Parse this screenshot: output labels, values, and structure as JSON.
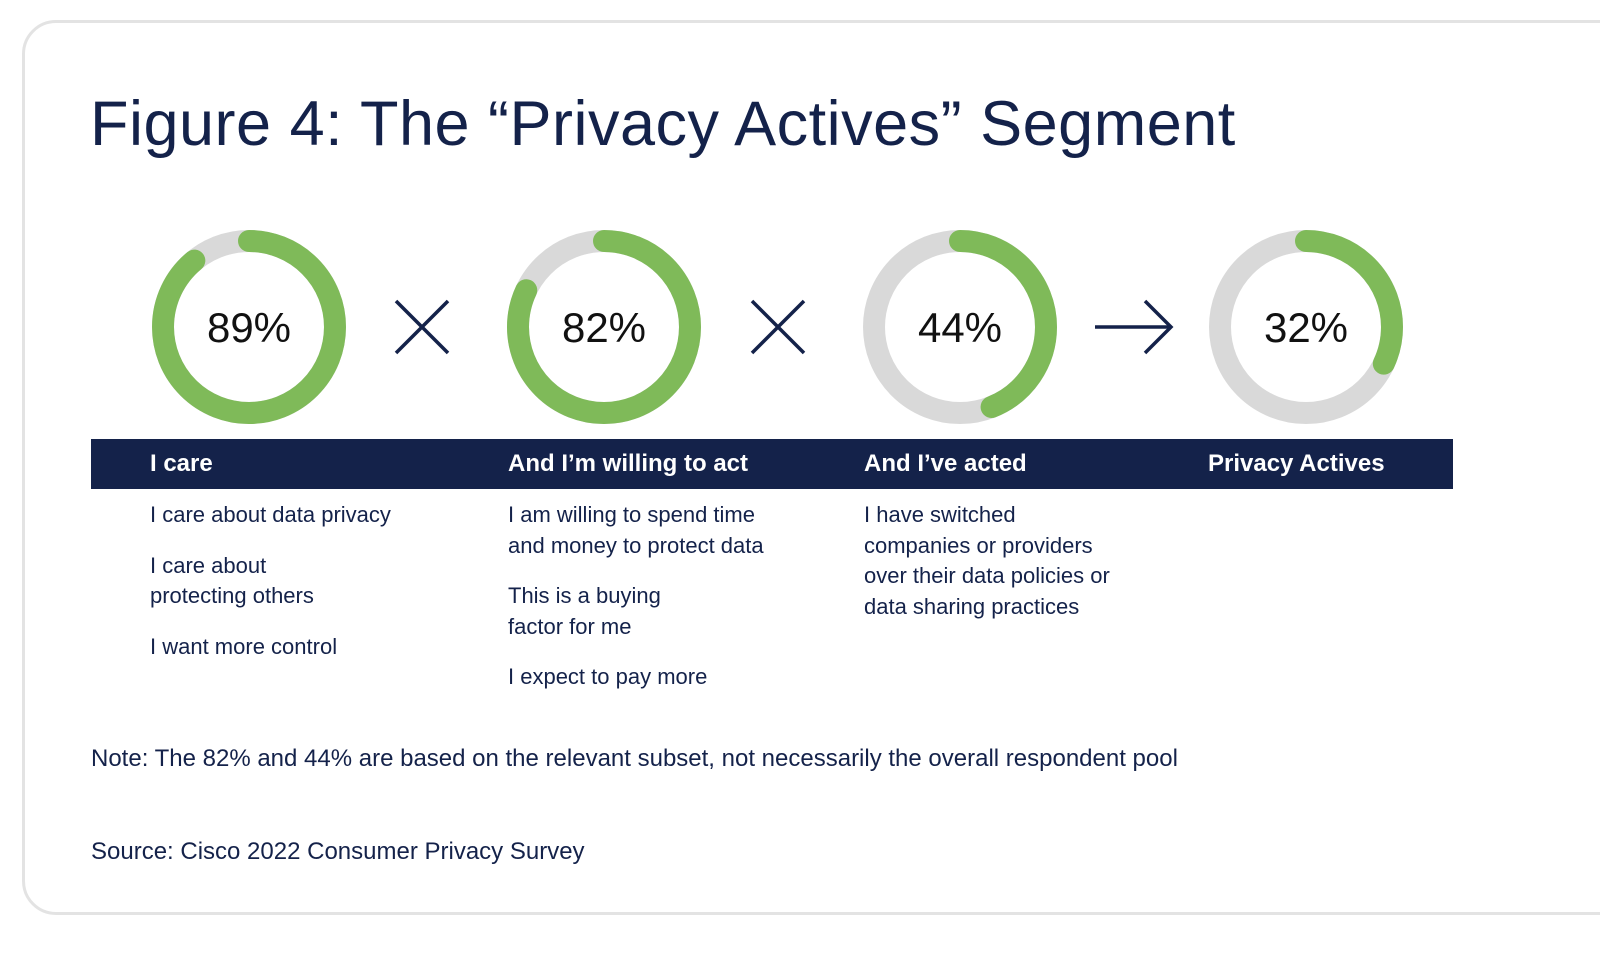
{
  "title": "Figure 4: The “Privacy Actives” Segment",
  "colors": {
    "accent": "#7fba59",
    "track": "#d9d9d9",
    "navy": "#14224a"
  },
  "chart_data": {
    "type": "donut",
    "title": "Figure 4: The “Privacy Actives” Segment",
    "series": [
      {
        "name": "I care",
        "value": 89,
        "label": "89%"
      },
      {
        "name": "And I’m willing to act",
        "value": 82,
        "label": "82%"
      },
      {
        "name": "And I’ve acted",
        "value": 44,
        "label": "44%"
      },
      {
        "name": "Privacy Actives",
        "value": 32,
        "label": "32%"
      }
    ],
    "operators": [
      "times-icon",
      "times-icon",
      "arrow-right-icon"
    ]
  },
  "columns": [
    {
      "header": "I care",
      "items": [
        "I care about data privacy",
        "I care about\nprotecting others",
        "I want more control"
      ]
    },
    {
      "header": "And I’m willing to act",
      "items": [
        "I am willing to spend time\nand money to protect data",
        "This is a buying\nfactor for me",
        "I expect to pay more"
      ]
    },
    {
      "header": "And I’ve acted",
      "items": [
        "I have switched\ncompanies or providers\nover their data policies or\ndata sharing practices"
      ]
    },
    {
      "header": "Privacy Actives",
      "items": []
    }
  ],
  "note": "Note: The 82% and 44% are based on the relevant subset, not necessarily the overall respondent pool",
  "source": "Source: Cisco 2022 Consumer Privacy Survey"
}
